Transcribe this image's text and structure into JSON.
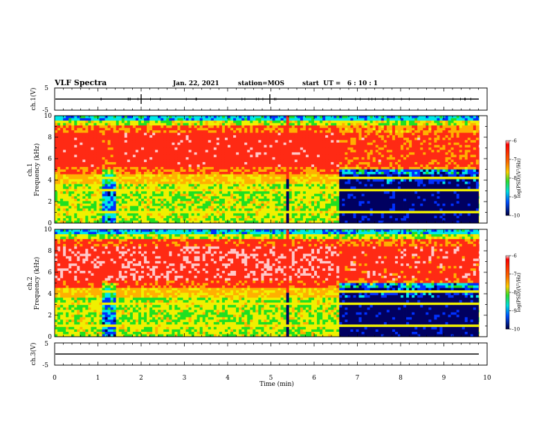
{
  "header": {
    "title": "VLF Spectra",
    "date": "Jan. 22, 2021",
    "station": "station=MOS",
    "start_ut": "start  UT =   6 : 10 : 1"
  },
  "colors": {
    "red": "#ff2a14",
    "orange": "#ffb000",
    "yellow": "#f0f000",
    "green": "#20e020",
    "cyan": "#00e8e8",
    "blue": "#0030ff",
    "navy": "#000060",
    "pink": "#ffc8c8",
    "line": "#000000"
  },
  "chart_data": [
    {
      "type": "line",
      "name": "ch1-waveform",
      "ylabel": "ch.1(V)",
      "ylim": [
        -5,
        5
      ],
      "yticks": [
        "5",
        "-5"
      ],
      "x": [
        0,
        10
      ],
      "y": [
        0,
        0
      ]
    },
    {
      "type": "heatmap",
      "name": "ch1-spectrogram",
      "ylabel": "ch.1\nFrequency (kHz)",
      "ylabel_lines": [
        "ch.1",
        "Frequency (kHz)"
      ],
      "xlim": [
        0,
        10
      ],
      "ylim": [
        0,
        10
      ],
      "yticks": [
        "0",
        "2",
        "4",
        "6",
        "8",
        "10"
      ],
      "colorbar": {
        "label": "log(PSD)(V²/Hz)",
        "range": [
          -10,
          -6
        ],
        "ticks": [
          "-6",
          "-7",
          "-8",
          "-9",
          "-10"
        ]
      }
    },
    {
      "type": "heatmap",
      "name": "ch2-spectrogram",
      "ylabel": "ch.2\nFrequency (kHz)",
      "ylabel_lines": [
        "ch.2",
        "Frequency (kHz)"
      ],
      "xlim": [
        0,
        10
      ],
      "ylim": [
        0,
        10
      ],
      "yticks": [
        "0",
        "2",
        "4",
        "6",
        "8",
        "10"
      ],
      "colorbar": {
        "label": "log(PSD)(V²/Hz)",
        "range": [
          -10,
          -6
        ],
        "ticks": [
          "-6",
          "-7",
          "-8",
          "-9",
          "-10"
        ]
      }
    },
    {
      "type": "line",
      "name": "ch3-waveform",
      "ylabel": "ch.3(V)",
      "ylim": [
        -5,
        5
      ],
      "yticks": [
        "5",
        "-5"
      ],
      "x": [
        0,
        10
      ],
      "y": [
        0,
        0
      ]
    }
  ],
  "xaxis": {
    "label": "Time (min)",
    "ticks": [
      "0",
      "1",
      "2",
      "3",
      "4",
      "5",
      "6",
      "7",
      "8",
      "9",
      "10"
    ]
  }
}
